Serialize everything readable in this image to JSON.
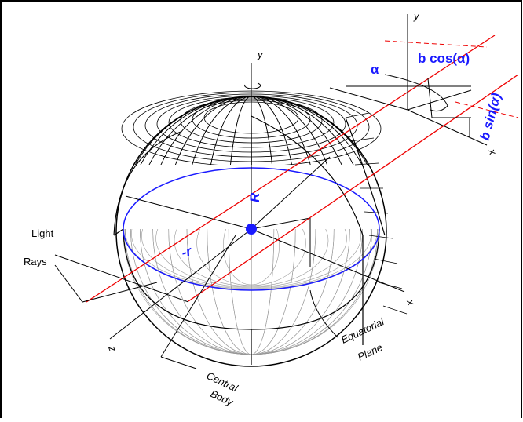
{
  "labels": {
    "y_main": "y",
    "y_inset": "y",
    "alpha": "α",
    "b_cos": "b cos(α)",
    "b_sin": "b sin(α)",
    "x_inset": "x",
    "R": "R",
    "r": "-r",
    "light_rays": [
      "Light",
      "Rays"
    ],
    "x_main": "x",
    "z_main": "z",
    "central_body": [
      "Central",
      "Body"
    ],
    "equatorial_plane": [
      "Equatorial",
      "Plane"
    ]
  }
}
